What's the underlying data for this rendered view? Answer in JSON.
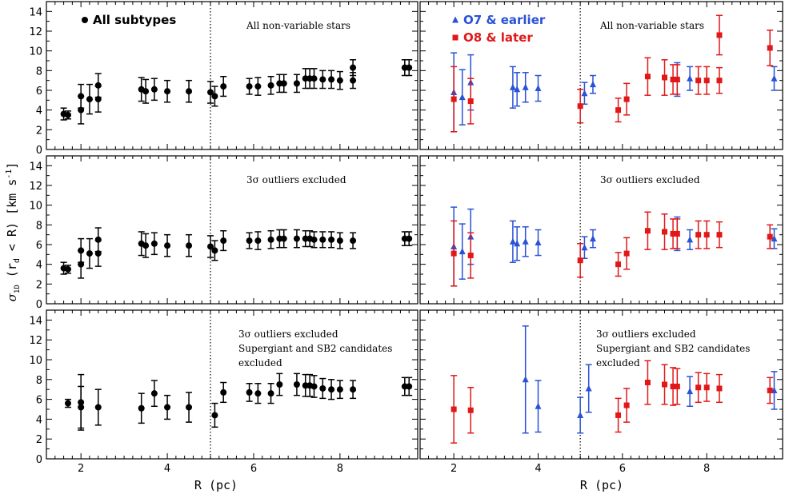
{
  "colors": {
    "all": "#000000",
    "early": "#2a52d6",
    "late": "#e01818",
    "frame": "#000000"
  },
  "labels": {
    "xlabel": "R (pc)",
    "ylabel": "σ1D (rd < R) [km s⁻¹]",
    "ylabel_sigma": "σ",
    "ylabel_sigma_sub": "1D",
    "ylabel_mid": " (r",
    "ylabel_d_sub": "d",
    "ylabel_rest": " < R) [km s",
    "ylabel_exp": "-1",
    "ylabel_close": "]"
  },
  "chart_data": [
    {
      "type": "scatter",
      "panel": "left-top",
      "annotations": [
        "All non-variable stars"
      ],
      "legend": [
        {
          "name": "All subtypes",
          "marker": "circle",
          "color": "#000000"
        }
      ],
      "xlim": [
        1.2,
        9.8
      ],
      "ylim": [
        0,
        15
      ],
      "xticks": [
        2,
        4,
        6,
        8
      ],
      "yticks": [
        0,
        2,
        4,
        6,
        8,
        10,
        12,
        14
      ],
      "vline": 5,
      "series": [
        {
          "name": "All subtypes",
          "marker": "circle",
          "color": "#000000",
          "points": [
            [
              1.6,
              3.6,
              0.6
            ],
            [
              1.7,
              3.5,
              0.4
            ],
            [
              2.0,
              4.0,
              1.4
            ],
            [
              2.0,
              5.4,
              1.2
            ],
            [
              2.2,
              5.1,
              1.5
            ],
            [
              2.4,
              5.1,
              1.3
            ],
            [
              2.4,
              6.5,
              1.2
            ],
            [
              3.4,
              6.1,
              1.2
            ],
            [
              3.5,
              5.9,
              1.2
            ],
            [
              3.7,
              6.1,
              1.1
            ],
            [
              4.0,
              5.9,
              1.1
            ],
            [
              4.5,
              5.9,
              1.1
            ],
            [
              5.0,
              5.8,
              1.1
            ],
            [
              5.1,
              5.4,
              1.0
            ],
            [
              5.3,
              6.4,
              1.0
            ],
            [
              5.9,
              6.4,
              0.8
            ],
            [
              6.1,
              6.4,
              0.9
            ],
            [
              6.4,
              6.5,
              0.9
            ],
            [
              6.6,
              6.7,
              0.9
            ],
            [
              6.7,
              6.7,
              0.9
            ],
            [
              7.0,
              6.7,
              0.9
            ],
            [
              7.2,
              7.2,
              1.0
            ],
            [
              7.3,
              7.2,
              1.0
            ],
            [
              7.4,
              7.2,
              1.0
            ],
            [
              7.6,
              7.1,
              0.9
            ],
            [
              7.8,
              7.1,
              0.9
            ],
            [
              8.0,
              7.0,
              0.9
            ],
            [
              8.3,
              7.0,
              0.8
            ],
            [
              8.3,
              8.3,
              0.8
            ],
            [
              9.5,
              8.3,
              0.8
            ],
            [
              9.6,
              8.3,
              0.8
            ]
          ]
        }
      ]
    },
    {
      "type": "scatter",
      "panel": "right-top",
      "annotations": [
        "All non-variable stars"
      ],
      "legend": [
        {
          "name": "O7 & earlier",
          "marker": "triangle",
          "color": "#2a52d6"
        },
        {
          "name": "O8 & later",
          "marker": "square",
          "color": "#e01818"
        }
      ],
      "xlim": [
        1.2,
        9.8
      ],
      "ylim": [
        0,
        15
      ],
      "xticks": [
        2,
        4,
        6,
        8
      ],
      "yticks": [
        0,
        2,
        4,
        6,
        8,
        10,
        12,
        14
      ],
      "vline": 5,
      "series": [
        {
          "name": "O7 & earlier",
          "marker": "triangle",
          "color": "#2a52d6",
          "points": [
            [
              2.0,
              5.8,
              4.0
            ],
            [
              2.2,
              5.3,
              2.8
            ],
            [
              2.4,
              6.8,
              2.8
            ],
            [
              3.4,
              6.3,
              2.1
            ],
            [
              3.5,
              6.1,
              1.7
            ],
            [
              3.7,
              6.3,
              1.5
            ],
            [
              4.0,
              6.2,
              1.3
            ],
            [
              5.1,
              5.7,
              1.1
            ],
            [
              5.3,
              6.6,
              0.9
            ],
            [
              7.3,
              7.1,
              1.7
            ],
            [
              7.6,
              7.2,
              1.2
            ],
            [
              9.6,
              7.2,
              1.2
            ]
          ]
        },
        {
          "name": "O8 & later",
          "marker": "square",
          "color": "#e01818",
          "points": [
            [
              2.0,
              5.1,
              3.3
            ],
            [
              2.4,
              4.9,
              2.3
            ],
            [
              5.0,
              4.4,
              1.7
            ],
            [
              5.9,
              4.0,
              1.2
            ],
            [
              6.1,
              5.1,
              1.6
            ],
            [
              6.6,
              7.4,
              1.9
            ],
            [
              7.0,
              7.3,
              1.8
            ],
            [
              7.2,
              7.1,
              1.5
            ],
            [
              7.3,
              7.1,
              1.5
            ],
            [
              7.8,
              7.0,
              1.4
            ],
            [
              8.0,
              7.0,
              1.4
            ],
            [
              8.3,
              7.0,
              1.3
            ],
            [
              8.3,
              11.6,
              2.0
            ],
            [
              9.5,
              10.3,
              1.8
            ]
          ]
        }
      ]
    },
    {
      "type": "scatter",
      "panel": "left-middle",
      "annotations": [
        "3σ outliers excluded"
      ],
      "xlim": [
        1.2,
        9.8
      ],
      "ylim": [
        0,
        15
      ],
      "xticks": [
        2,
        4,
        6,
        8
      ],
      "yticks": [
        0,
        2,
        4,
        6,
        8,
        10,
        12,
        14
      ],
      "vline": 5,
      "series": [
        {
          "name": "All subtypes",
          "marker": "circle",
          "color": "#000000",
          "points": [
            [
              1.6,
              3.6,
              0.6
            ],
            [
              1.7,
              3.5,
              0.4
            ],
            [
              2.0,
              4.0,
              1.4
            ],
            [
              2.0,
              5.4,
              1.2
            ],
            [
              2.2,
              5.1,
              1.5
            ],
            [
              2.4,
              5.1,
              1.3
            ],
            [
              2.4,
              6.5,
              1.2
            ],
            [
              3.4,
              6.1,
              1.2
            ],
            [
              3.5,
              5.9,
              1.2
            ],
            [
              3.7,
              6.1,
              1.1
            ],
            [
              4.0,
              5.9,
              1.1
            ],
            [
              4.5,
              5.9,
              1.1
            ],
            [
              5.0,
              5.8,
              1.1
            ],
            [
              5.1,
              5.4,
              1.0
            ],
            [
              5.3,
              6.4,
              1.0
            ],
            [
              5.9,
              6.4,
              0.8
            ],
            [
              6.1,
              6.4,
              0.9
            ],
            [
              6.4,
              6.5,
              0.9
            ],
            [
              6.6,
              6.6,
              0.9
            ],
            [
              6.7,
              6.6,
              0.9
            ],
            [
              7.0,
              6.6,
              0.9
            ],
            [
              7.2,
              6.6,
              0.8
            ],
            [
              7.3,
              6.6,
              0.8
            ],
            [
              7.4,
              6.5,
              0.8
            ],
            [
              7.6,
              6.5,
              0.8
            ],
            [
              7.8,
              6.5,
              0.8
            ],
            [
              8.0,
              6.4,
              0.8
            ],
            [
              8.3,
              6.4,
              0.8
            ],
            [
              9.5,
              6.6,
              0.7
            ],
            [
              9.6,
              6.6,
              0.7
            ]
          ]
        }
      ]
    },
    {
      "type": "scatter",
      "panel": "right-middle",
      "annotations": [
        "3σ outliers excluded"
      ],
      "xlim": [
        1.2,
        9.8
      ],
      "ylim": [
        0,
        15
      ],
      "xticks": [
        2,
        4,
        6,
        8
      ],
      "yticks": [
        0,
        2,
        4,
        6,
        8,
        10,
        12,
        14
      ],
      "vline": 5,
      "series": [
        {
          "name": "O7 & earlier",
          "marker": "triangle",
          "color": "#2a52d6",
          "points": [
            [
              2.0,
              5.8,
              4.0
            ],
            [
              2.2,
              5.3,
              2.8
            ],
            [
              2.4,
              6.8,
              2.8
            ],
            [
              3.4,
              6.3,
              2.1
            ],
            [
              3.5,
              6.1,
              1.7
            ],
            [
              3.7,
              6.3,
              1.5
            ],
            [
              4.0,
              6.2,
              1.3
            ],
            [
              5.1,
              5.7,
              1.1
            ],
            [
              5.3,
              6.6,
              0.9
            ],
            [
              7.3,
              7.1,
              1.7
            ],
            [
              7.6,
              6.5,
              1.0
            ],
            [
              9.6,
              6.6,
              1.0
            ]
          ]
        },
        {
          "name": "O8 & later",
          "marker": "square",
          "color": "#e01818",
          "points": [
            [
              2.0,
              5.1,
              3.3
            ],
            [
              2.4,
              4.9,
              2.3
            ],
            [
              5.0,
              4.4,
              1.7
            ],
            [
              5.9,
              4.0,
              1.2
            ],
            [
              6.1,
              5.1,
              1.6
            ],
            [
              6.6,
              7.4,
              1.9
            ],
            [
              7.0,
              7.3,
              1.8
            ],
            [
              7.2,
              7.1,
              1.5
            ],
            [
              7.3,
              7.1,
              1.5
            ],
            [
              7.8,
              7.0,
              1.4
            ],
            [
              8.0,
              7.0,
              1.4
            ],
            [
              8.3,
              7.0,
              1.3
            ],
            [
              9.5,
              6.8,
              1.2
            ]
          ]
        }
      ]
    },
    {
      "type": "scatter",
      "panel": "left-bottom",
      "annotations": [
        "3σ outliers excluded",
        "Supergiant and SB2 candidates",
        "excluded"
      ],
      "xlim": [
        1.2,
        9.8
      ],
      "ylim": [
        0,
        15
      ],
      "xticks": [
        2,
        4,
        6,
        8
      ],
      "yticks": [
        0,
        2,
        4,
        6,
        8,
        10,
        12,
        14
      ],
      "vline": 5,
      "series": [
        {
          "name": "All subtypes",
          "marker": "circle",
          "color": "#000000",
          "points": [
            [
              1.7,
              5.6,
              0.4
            ],
            [
              2.0,
              5.2,
              2.1
            ],
            [
              2.0,
              5.7,
              2.8
            ],
            [
              2.4,
              5.2,
              1.8
            ],
            [
              3.4,
              5.1,
              1.5
            ],
            [
              3.7,
              6.6,
              1.3
            ],
            [
              4.0,
              5.2,
              1.2
            ],
            [
              4.5,
              5.2,
              1.5
            ],
            [
              5.1,
              4.4,
              1.2
            ],
            [
              5.3,
              6.7,
              1.0
            ],
            [
              5.9,
              6.7,
              0.9
            ],
            [
              6.1,
              6.6,
              1.0
            ],
            [
              6.4,
              6.6,
              1.0
            ],
            [
              6.6,
              7.5,
              1.1
            ],
            [
              7.0,
              7.5,
              1.1
            ],
            [
              7.2,
              7.4,
              1.1
            ],
            [
              7.3,
              7.4,
              1.1
            ],
            [
              7.4,
              7.3,
              1.1
            ],
            [
              7.6,
              7.1,
              1.0
            ],
            [
              7.8,
              7.0,
              1.0
            ],
            [
              8.0,
              7.0,
              0.9
            ],
            [
              8.3,
              7.0,
              0.9
            ],
            [
              9.5,
              7.3,
              0.9
            ],
            [
              9.6,
              7.3,
              0.9
            ]
          ]
        }
      ]
    },
    {
      "type": "scatter",
      "panel": "right-bottom",
      "annotations": [
        "3σ outliers excluded",
        "Supergiant and SB2 candidates",
        "excluded"
      ],
      "xlim": [
        1.2,
        9.8
      ],
      "ylim": [
        0,
        15
      ],
      "xticks": [
        2,
        4,
        6,
        8
      ],
      "yticks": [
        0,
        2,
        4,
        6,
        8,
        10,
        12,
        14
      ],
      "vline": 5,
      "series": [
        {
          "name": "O7 & earlier",
          "marker": "triangle",
          "color": "#2a52d6",
          "points": [
            [
              3.7,
              8.0,
              5.4
            ],
            [
              4.0,
              5.3,
              2.6
            ],
            [
              5.0,
              4.4,
              1.8
            ],
            [
              5.2,
              7.1,
              2.4
            ],
            [
              7.6,
              6.8,
              1.5
            ],
            [
              9.6,
              6.9,
              1.9
            ]
          ]
        },
        {
          "name": "O8 & later",
          "marker": "square",
          "color": "#e01818",
          "points": [
            [
              2.0,
              5.0,
              3.4
            ],
            [
              2.4,
              4.9,
              2.3
            ],
            [
              5.9,
              4.4,
              1.7
            ],
            [
              6.1,
              5.4,
              1.7
            ],
            [
              6.6,
              7.7,
              2.2
            ],
            [
              7.0,
              7.5,
              2.0
            ],
            [
              7.2,
              7.3,
              1.9
            ],
            [
              7.3,
              7.3,
              1.8
            ],
            [
              7.8,
              7.2,
              1.5
            ],
            [
              8.0,
              7.2,
              1.4
            ],
            [
              8.3,
              7.1,
              1.4
            ],
            [
              9.5,
              6.9,
              1.3
            ]
          ]
        }
      ]
    }
  ]
}
